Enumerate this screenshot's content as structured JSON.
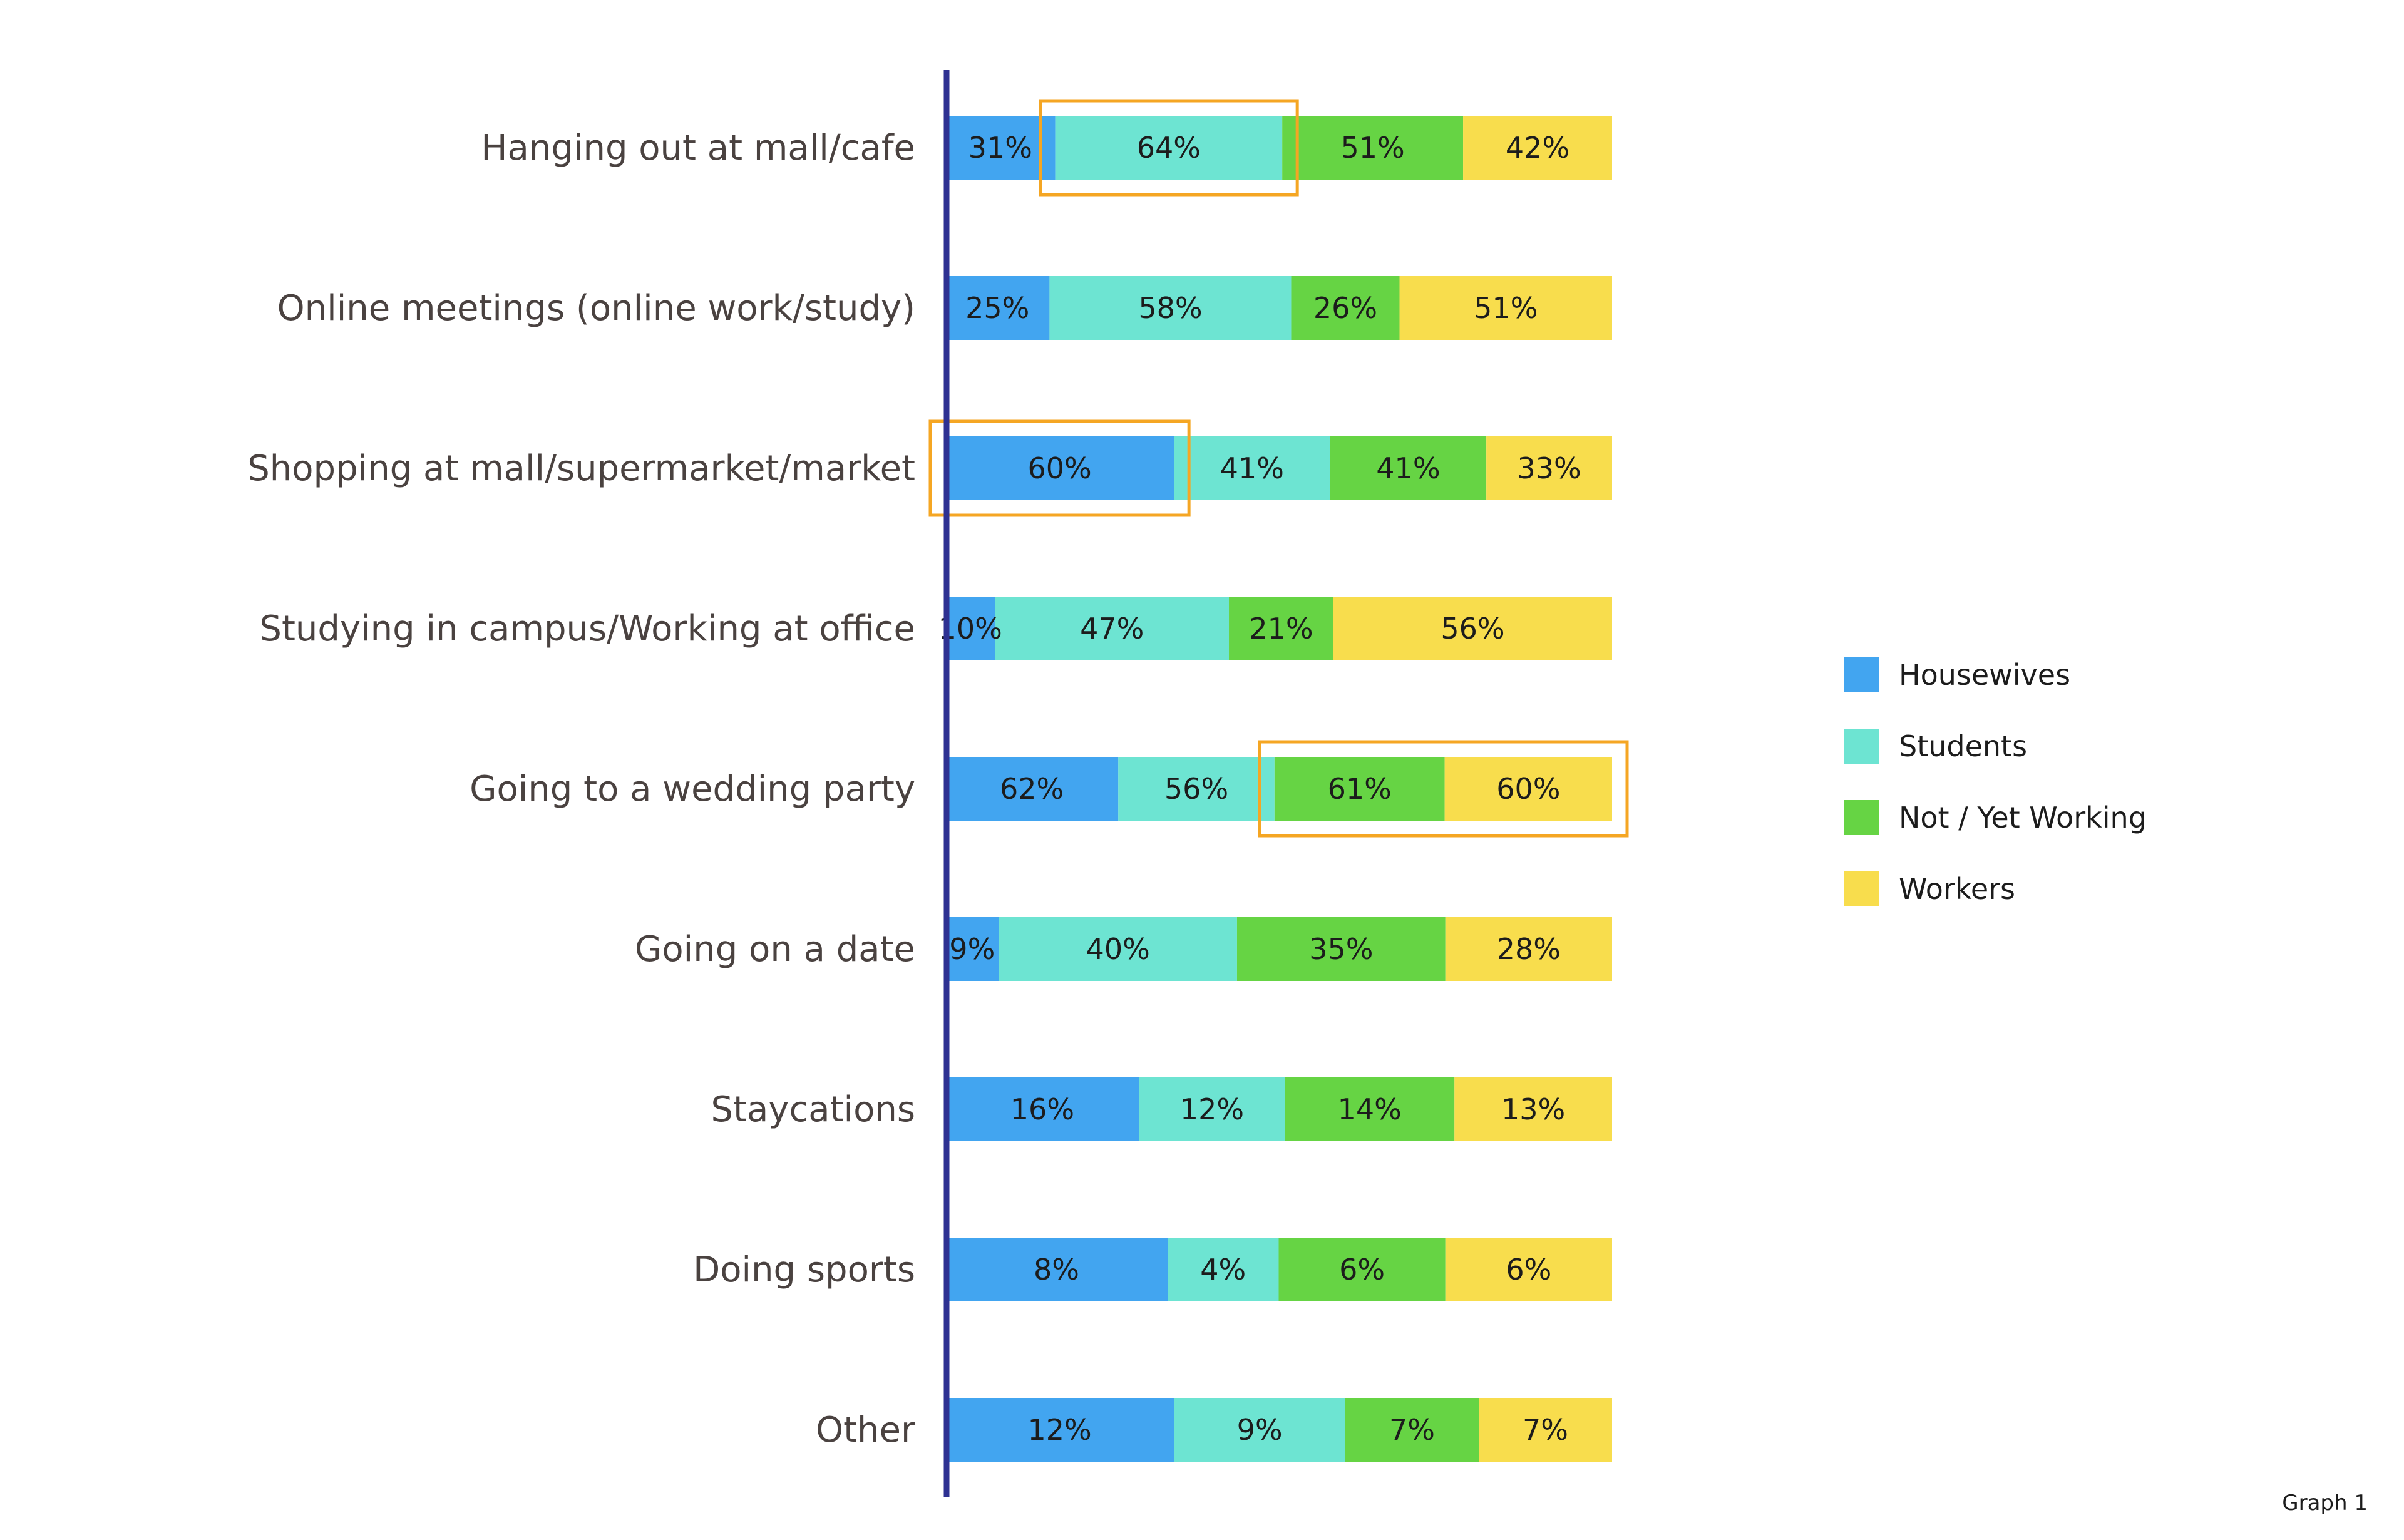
{
  "chart_data": {
    "type": "bar",
    "orientation": "horizontal",
    "stacked": true,
    "categories": [
      "Hanging out at mall/cafe",
      "Online meetings (online work/study)",
      "Shopping at mall/supermarket/market",
      "Studying in campus/Working at office",
      "Going to a wedding party",
      "Going on a date",
      "Staycations",
      "Doing sports",
      "Other"
    ],
    "series": [
      {
        "name": "Housewives",
        "color": "#42A5F0",
        "values": [
          31,
          25,
          60,
          10,
          62,
          9,
          16,
          8,
          12
        ],
        "labels": [
          "31%",
          "25%",
          "60%",
          "10%",
          "62%",
          "9%",
          "16%",
          "8%",
          "12%"
        ]
      },
      {
        "name": "Students",
        "color": "#6DE4D2",
        "values": [
          64,
          58,
          41,
          47,
          56,
          40,
          12,
          4,
          9
        ],
        "labels": [
          "64%",
          "58%",
          "41%",
          "47%",
          "56%",
          "40%",
          "12%",
          "4%",
          "9%"
        ]
      },
      {
        "name": "Not / Yet Working",
        "color": "#66D444",
        "values": [
          51,
          26,
          41,
          21,
          61,
          35,
          14,
          6,
          7
        ],
        "labels": [
          "51%",
          "26%",
          "41%",
          "21%",
          "61%",
          "35%",
          "14%",
          "6%",
          "7%"
        ]
      },
      {
        "name": "Workers",
        "color": "#F8DD4D",
        "values": [
          42,
          51,
          33,
          56,
          60,
          28,
          13,
          6,
          7
        ],
        "labels": [
          "42%",
          "51%",
          "33%",
          "56%",
          "60%",
          "28%",
          "13%",
          "6%",
          "7%"
        ]
      }
    ],
    "bar_fill": "percent-of-row",
    "highlights": [
      {
        "category": "Hanging out at mall/cafe",
        "series": [
          "Students"
        ]
      },
      {
        "category": "Shopping at mall/supermarket/market",
        "series": [
          "Housewives"
        ]
      },
      {
        "category": "Going to a wedding party",
        "series": [
          "Not / Yet Working",
          "Workers"
        ]
      }
    ],
    "legend_position": "right",
    "grid": false,
    "axis_color": "#2E3192",
    "highlight_color": "#F5A623",
    "footer": "Graph 1"
  }
}
